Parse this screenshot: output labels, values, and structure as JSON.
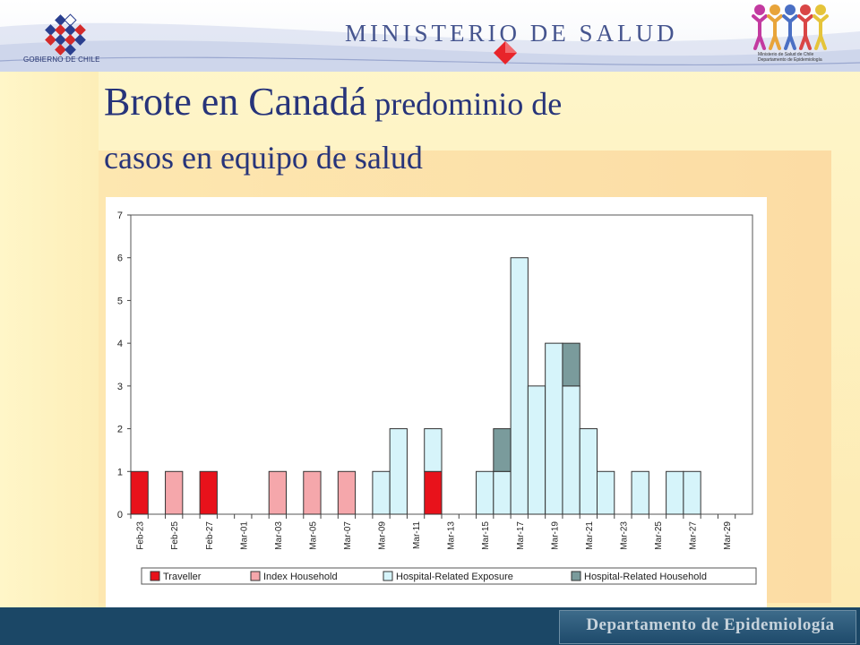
{
  "header": {
    "gov_text": "GOBIERNO DE CHILE",
    "ministry": "MINISTERIO DE SALUD",
    "logo_text_line1": "Ministerio de Salud de Chile",
    "logo_text_line2": "Departamento de Epidemiología"
  },
  "slide": {
    "title_big": "Brote en Canadá",
    "title_small_1": " predominio de",
    "title_small_2": "casos en equipo de salud"
  },
  "footer": {
    "department": "Departamento de Epidemiología"
  },
  "colors": {
    "traveller": "#e8121b",
    "index_household": "#f5a7ab",
    "hospital_exposure": "#d6f4fa",
    "hospital_household": "#7a9b9c"
  },
  "chart_data": {
    "type": "bar",
    "stacked": true,
    "title": "",
    "xlabel": "",
    "ylabel": "",
    "ylim": [
      0,
      7
    ],
    "yticks": [
      0,
      1,
      2,
      3,
      4,
      5,
      6,
      7
    ],
    "categories": [
      "Feb-23",
      "Feb-24",
      "Feb-25",
      "Feb-26",
      "Feb-27",
      "Feb-28",
      "Mar-01",
      "Mar-02",
      "Mar-03",
      "Mar-04",
      "Mar-05",
      "Mar-06",
      "Mar-07",
      "Mar-08",
      "Mar-09",
      "Mar-10",
      "Mar-11",
      "Mar-12",
      "Mar-13",
      "Mar-14",
      "Mar-15",
      "Mar-16",
      "Mar-17",
      "Mar-18",
      "Mar-19",
      "Mar-20",
      "Mar-21",
      "Mar-22",
      "Mar-23",
      "Mar-24",
      "Mar-25",
      "Mar-26",
      "Mar-27",
      "Mar-28",
      "Mar-29",
      "Mar-30"
    ],
    "tick_labels": [
      "Feb-23",
      "",
      "Feb-25",
      "",
      "Feb-27",
      "",
      "Mar-01",
      "",
      "Mar-03",
      "",
      "Mar-05",
      "",
      "Mar-07",
      "",
      "Mar-09",
      "",
      "Mar-11",
      "",
      "Mar-13",
      "",
      "Mar-15",
      "",
      "Mar-17",
      "",
      "Mar-19",
      "",
      "Mar-21",
      "",
      "Mar-23",
      "",
      "Mar-25",
      "",
      "Mar-27",
      "",
      "Mar-29",
      ""
    ],
    "series": [
      {
        "name": "Traveller",
        "color": "#e8121b",
        "values": [
          1,
          0,
          0,
          0,
          1,
          0,
          0,
          0,
          0,
          0,
          0,
          0,
          0,
          0,
          0,
          0,
          0,
          1,
          0,
          0,
          0,
          0,
          0,
          0,
          0,
          0,
          0,
          0,
          0,
          0,
          0,
          0,
          0,
          0,
          0,
          0
        ]
      },
      {
        "name": "Index Household",
        "color": "#f5a7ab",
        "values": [
          0,
          0,
          1,
          0,
          0,
          0,
          0,
          0,
          1,
          0,
          1,
          0,
          1,
          0,
          0,
          0,
          0,
          0,
          0,
          0,
          0,
          0,
          0,
          0,
          0,
          0,
          0,
          0,
          0,
          0,
          0,
          0,
          0,
          0,
          0,
          0
        ]
      },
      {
        "name": "Hospital-Related Exposure",
        "color": "#d6f4fa",
        "values": [
          0,
          0,
          0,
          0,
          0,
          0,
          0,
          0,
          0,
          0,
          0,
          0,
          0,
          0,
          1,
          2,
          0,
          1,
          0,
          0,
          1,
          1,
          6,
          3,
          4,
          3,
          2,
          1,
          0,
          1,
          0,
          1,
          1,
          0,
          0,
          0
        ]
      },
      {
        "name": "Hospital-Related Household",
        "color": "#7a9b9c",
        "values": [
          0,
          0,
          0,
          0,
          0,
          0,
          0,
          0,
          0,
          0,
          0,
          0,
          0,
          0,
          0,
          0,
          0,
          0,
          0,
          0,
          0,
          1,
          0,
          0,
          0,
          1,
          0,
          0,
          0,
          0,
          0,
          0,
          0,
          0,
          0,
          0
        ]
      }
    ],
    "legend_position": "bottom",
    "grid": false
  }
}
